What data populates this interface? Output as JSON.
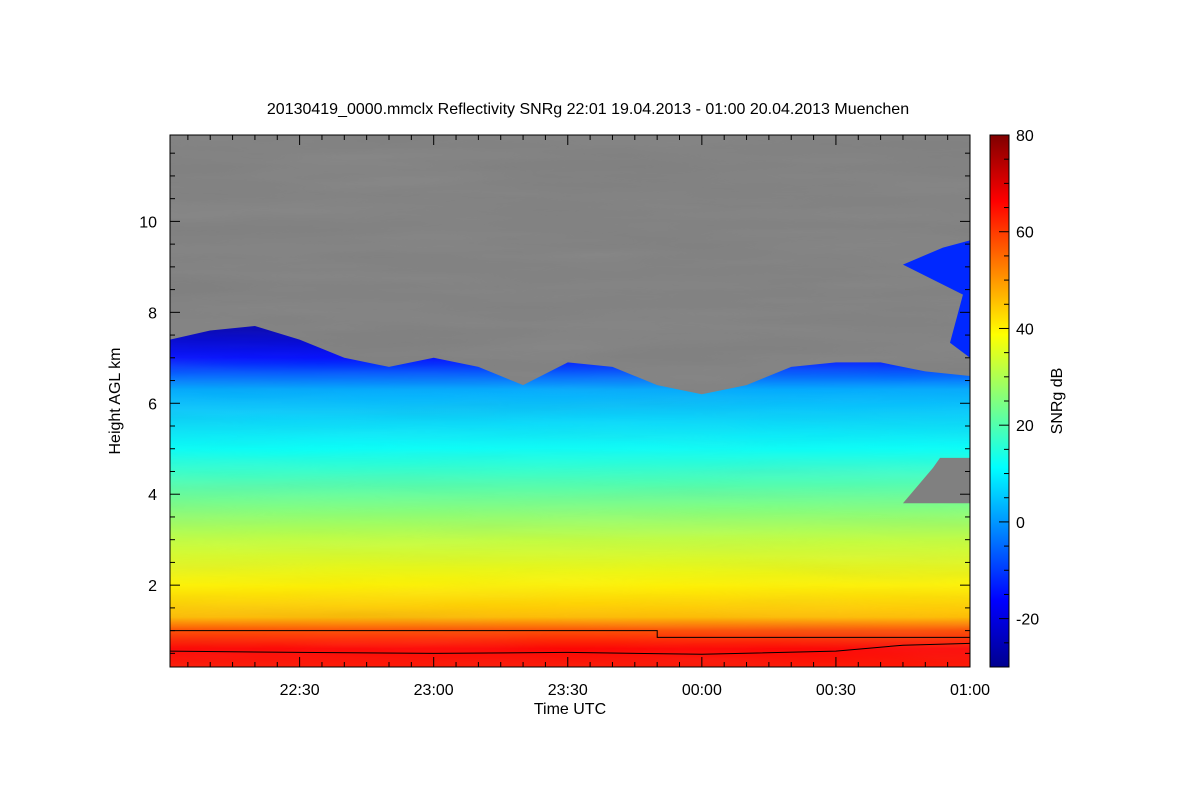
{
  "chart_data": {
    "type": "heatmap",
    "title": "20130419_0000.mmclx Reflectivity SNRg   22:01 19.04.2013 - 01:00 20.04.2013 Muenchen",
    "xlabel": "Time UTC",
    "ylabel": "Height AGL km",
    "colorbar_label": "SNRg dB",
    "x_range": [
      "22:01",
      "01:00"
    ],
    "ylim": [
      0.2,
      11.9
    ],
    "x_ticks": [
      "22:30",
      "23:00",
      "23:30",
      "00:00",
      "00:30",
      "01:00"
    ],
    "y_ticks": [
      "2",
      "4",
      "6",
      "8",
      "10"
    ],
    "colorbar_range": [
      -30,
      80
    ],
    "colorbar_ticks": [
      "-20",
      "0",
      "20",
      "40",
      "60",
      "80"
    ],
    "no_data_color": "#808080",
    "colormap": [
      "#00008f",
      "#0000ff",
      "#0080ff",
      "#00ffff",
      "#80ff80",
      "#ffff00",
      "#ff8000",
      "#ff0000",
      "#800000"
    ],
    "echo_top_km": [
      {
        "t": "22:01",
        "h": 7.4
      },
      {
        "t": "22:10",
        "h": 7.6
      },
      {
        "t": "22:20",
        "h": 7.7
      },
      {
        "t": "22:30",
        "h": 7.4
      },
      {
        "t": "22:40",
        "h": 7.0
      },
      {
        "t": "22:50",
        "h": 6.8
      },
      {
        "t": "23:00",
        "h": 7.0
      },
      {
        "t": "23:10",
        "h": 6.8
      },
      {
        "t": "23:20",
        "h": 6.4
      },
      {
        "t": "23:30",
        "h": 6.9
      },
      {
        "t": "23:40",
        "h": 6.8
      },
      {
        "t": "23:50",
        "h": 6.4
      },
      {
        "t": "00:00",
        "h": 6.2
      },
      {
        "t": "00:10",
        "h": 6.4
      },
      {
        "t": "00:20",
        "h": 6.8
      },
      {
        "t": "00:30",
        "h": 6.9
      },
      {
        "t": "00:40",
        "h": 6.9
      },
      {
        "t": "00:50",
        "h": 6.7
      },
      {
        "t": "01:00",
        "h": 6.6
      }
    ],
    "upper_cloud": {
      "t_start": "00:45",
      "t_end": "01:00",
      "base_km": 7.0,
      "top_km": 9.6
    },
    "gap_region": {
      "t_start": "00:45",
      "t_end": "01:00",
      "base_km": 3.8,
      "top_km": 4.8
    },
    "overlay_lines": [
      {
        "name": "step",
        "points": [
          {
            "t": "22:01",
            "h": 1.0
          },
          {
            "t": "23:50",
            "h": 1.0
          },
          {
            "t": "23:50",
            "h": 0.85
          },
          {
            "t": "01:00",
            "h": 0.85
          }
        ]
      },
      {
        "name": "noisy",
        "points": [
          {
            "t": "22:01",
            "h": 0.55
          },
          {
            "t": "22:30",
            "h": 0.52
          },
          {
            "t": "23:00",
            "h": 0.5
          },
          {
            "t": "23:30",
            "h": 0.52
          },
          {
            "t": "00:00",
            "h": 0.48
          },
          {
            "t": "00:30",
            "h": 0.55
          },
          {
            "t": "00:45",
            "h": 0.68
          },
          {
            "t": "01:00",
            "h": 0.72
          }
        ]
      }
    ]
  }
}
